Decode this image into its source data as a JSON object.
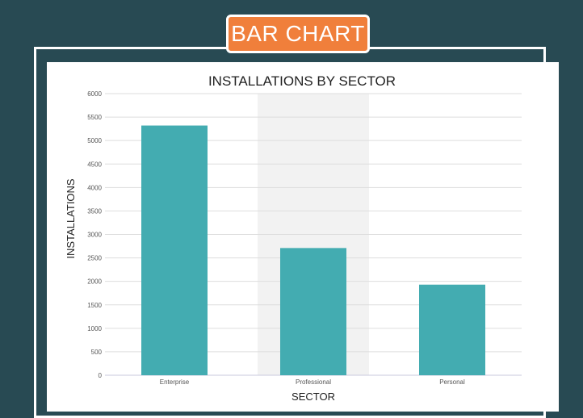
{
  "badge": {
    "label": "BAR CHART"
  },
  "colors": {
    "background": "#284a53",
    "badge": "#f07f3b",
    "bar": "#43acb1",
    "highlight_band": "#f2f2f2"
  },
  "chart_data": {
    "type": "bar",
    "title": "INSTALLATIONS BY SECTOR",
    "xlabel": "SECTOR",
    "ylabel": "INSTALLATIONS",
    "categories": [
      "Enterprise",
      "Professional",
      "Personal"
    ],
    "values": [
      5320,
      2710,
      1930
    ],
    "ylim": [
      0,
      6000
    ],
    "yticks": [
      0,
      500,
      1000,
      1500,
      2000,
      2500,
      3000,
      3500,
      4000,
      4500,
      5000,
      5500,
      6000
    ],
    "grid": true,
    "highlighted_category": "Professional"
  }
}
